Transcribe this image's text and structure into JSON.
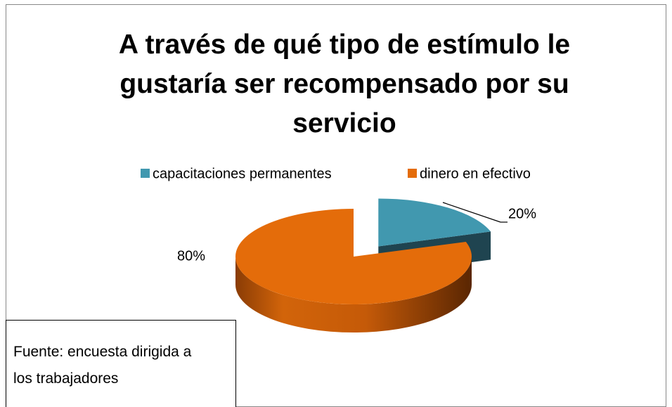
{
  "chart_data": {
    "type": "pie",
    "title": "A través de qué tipo de estímulo le gustaría ser recompensado por su servicio",
    "categories": [
      "capacitaciones permanentes",
      "dinero en efectivo"
    ],
    "values": [
      20,
      80
    ],
    "value_labels": [
      "20%",
      "80%"
    ],
    "colors": [
      "#4198af",
      "#e46c0a"
    ],
    "legend": "top",
    "annotation": "Fuente: encuesta dirigida a los trabajadores"
  }
}
